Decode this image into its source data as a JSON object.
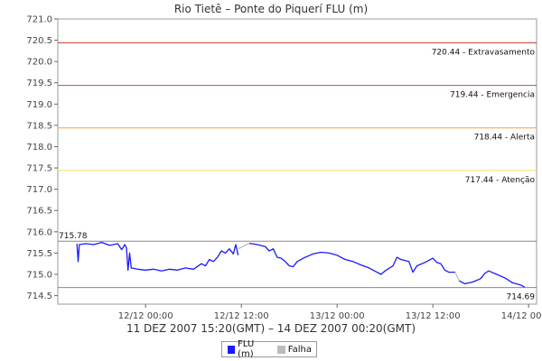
{
  "chart_data": {
    "type": "line",
    "title": "Rio Tietê – Ponte do Piquerí FLU (m)",
    "subtitle": "11 DEZ 2007 15:20(GMT) – 14 DEZ 2007 00:20(GMT)",
    "ylim": [
      714.3,
      721.0
    ],
    "y_ticks": [
      714.5,
      715.0,
      715.5,
      716.0,
      716.5,
      717.0,
      717.5,
      718.0,
      718.5,
      719.0,
      719.5,
      720.0,
      720.5,
      721.0
    ],
    "x_ticks": [
      "12/12 00:00",
      "12/12 12:00",
      "13/12 00:00",
      "13/12 12:00",
      "14/12 00:00"
    ],
    "x_range_hours": [
      -11.0,
      49.0
    ],
    "x_tick_hours": [
      0,
      12,
      24,
      36,
      48
    ],
    "grid": false,
    "legend_position": "bottom-center",
    "reference_lines": [
      {
        "value": 720.44,
        "label": "720.44 - Extravasamento",
        "color": "#c0392b"
      },
      {
        "value": 719.44,
        "label": "719.44 - Emergencia",
        "color": "#b040c0"
      },
      {
        "value": 718.44,
        "label": "718.44 - Alerta",
        "color": "#f0a040"
      },
      {
        "value": 717.44,
        "label": "717.44 - Atenção",
        "color": "#f0e060"
      },
      {
        "value": 715.78,
        "label": "715.78",
        "color": "#888888"
      },
      {
        "value": 714.69,
        "label": "714.69",
        "color": "#888888"
      }
    ],
    "series": [
      {
        "name": "FLU (m)",
        "color": "#1a1aff",
        "segments": [
          [
            [
              -8.6,
              715.72
            ],
            [
              -8.45,
              715.3
            ],
            [
              -8.3,
              715.7
            ],
            [
              -7.5,
              715.72
            ],
            [
              -6.5,
              715.7
            ],
            [
              -5.5,
              715.75
            ],
            [
              -4.5,
              715.68
            ],
            [
              -3.5,
              715.72
            ],
            [
              -3.0,
              715.58
            ],
            [
              -2.6,
              715.7
            ],
            [
              -2.4,
              715.62
            ],
            [
              -2.2,
              715.1
            ],
            [
              -2.0,
              715.5
            ],
            [
              -1.8,
              715.15
            ],
            [
              -1.0,
              715.12
            ],
            [
              0,
              715.1
            ],
            [
              1.0,
              715.12
            ],
            [
              2.0,
              715.08
            ],
            [
              3.0,
              715.12
            ],
            [
              4.0,
              715.1
            ],
            [
              5.0,
              715.15
            ],
            [
              6.0,
              715.12
            ],
            [
              7.0,
              715.25
            ],
            [
              7.5,
              715.2
            ],
            [
              8.0,
              715.35
            ],
            [
              8.5,
              715.3
            ],
            [
              9.0,
              715.4
            ],
            [
              9.5,
              715.55
            ],
            [
              10.0,
              715.5
            ],
            [
              10.5,
              715.6
            ],
            [
              11.0,
              715.48
            ],
            [
              11.3,
              715.7
            ],
            [
              11.6,
              715.45
            ]
          ],
          [
            [
              13.0,
              715.73
            ],
            [
              14.0,
              715.7
            ],
            [
              15.0,
              715.65
            ],
            [
              15.5,
              715.55
            ],
            [
              16.0,
              715.6
            ],
            [
              16.5,
              715.4
            ],
            [
              17.0,
              715.38
            ],
            [
              17.5,
              715.3
            ],
            [
              18.0,
              715.2
            ],
            [
              18.5,
              715.18
            ],
            [
              19.0,
              715.3
            ],
            [
              20.0,
              715.4
            ],
            [
              21.0,
              715.48
            ],
            [
              22.0,
              715.52
            ],
            [
              23.0,
              715.5
            ],
            [
              24.0,
              715.45
            ],
            [
              25.0,
              715.35
            ],
            [
              26.0,
              715.3
            ],
            [
              27.0,
              715.22
            ],
            [
              28.0,
              715.15
            ],
            [
              29.0,
              715.05
            ],
            [
              29.5,
              715.0
            ],
            [
              30.0,
              715.08
            ],
            [
              31.0,
              715.2
            ],
            [
              31.5,
              715.4
            ],
            [
              32.0,
              715.35
            ],
            [
              33.0,
              715.3
            ],
            [
              33.5,
              715.05
            ],
            [
              34.0,
              715.2
            ],
            [
              35.0,
              715.28
            ],
            [
              36.0,
              715.38
            ],
            [
              36.5,
              715.28
            ],
            [
              37.0,
              715.25
            ],
            [
              37.5,
              715.1
            ],
            [
              38.0,
              715.05
            ],
            [
              38.8,
              715.05
            ]
          ],
          [
            [
              39.3,
              714.85
            ],
            [
              40.0,
              714.78
            ],
            [
              41.0,
              714.82
            ],
            [
              42.0,
              714.9
            ],
            [
              42.5,
              715.02
            ],
            [
              43.0,
              715.08
            ],
            [
              44.0,
              715.0
            ],
            [
              45.0,
              714.92
            ],
            [
              46.0,
              714.8
            ],
            [
              47.0,
              714.75
            ],
            [
              47.5,
              714.7
            ]
          ]
        ]
      },
      {
        "name": "Falha",
        "color": "#bbbbbb",
        "segments": [
          [
            [
              11.6,
              715.6
            ],
            [
              13.0,
              715.73
            ]
          ],
          [
            [
              38.8,
              715.05
            ],
            [
              39.3,
              714.85
            ]
          ]
        ]
      }
    ]
  }
}
